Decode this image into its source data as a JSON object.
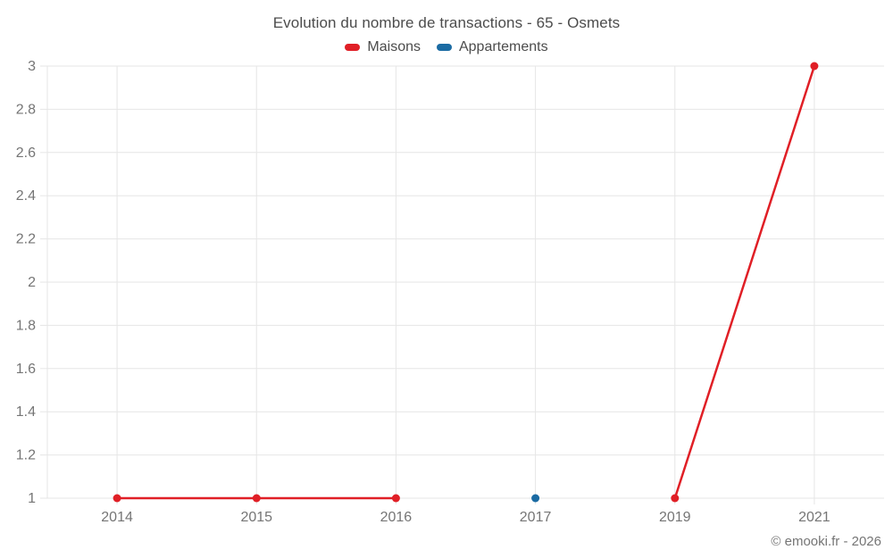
{
  "header": {
    "title": "Evolution du nombre de transactions - 65 - Osmets"
  },
  "legend": {
    "items": [
      {
        "label": "Maisons",
        "color": "#e01f26"
      },
      {
        "label": "Appartements",
        "color": "#1b6ba3"
      }
    ]
  },
  "footer": {
    "copyright": "© emooki.fr - 2026"
  },
  "colors": {
    "grid": "#e6e6e6",
    "axis_label": "#757575",
    "title_text": "#4c4c4c"
  },
  "chart_data": {
    "type": "line",
    "title": "Evolution du nombre de transactions - 65 - Osmets",
    "xlabel": "",
    "ylabel": "",
    "categories": [
      "2014",
      "2015",
      "2016",
      "2017",
      "2019",
      "2021"
    ],
    "series": [
      {
        "name": "Maisons",
        "color": "#e01f26",
        "values": [
          1,
          1,
          1,
          null,
          1,
          3
        ]
      },
      {
        "name": "Appartements",
        "color": "#1b6ba3",
        "values": [
          null,
          null,
          null,
          1,
          null,
          null
        ]
      }
    ],
    "ylim": [
      1,
      3
    ],
    "yticks": [
      1,
      1.2,
      1.4,
      1.6,
      1.8,
      2,
      2.2,
      2.4,
      2.6,
      2.8,
      3
    ],
    "grid": true,
    "legend_position": "top",
    "marker": "circle"
  }
}
